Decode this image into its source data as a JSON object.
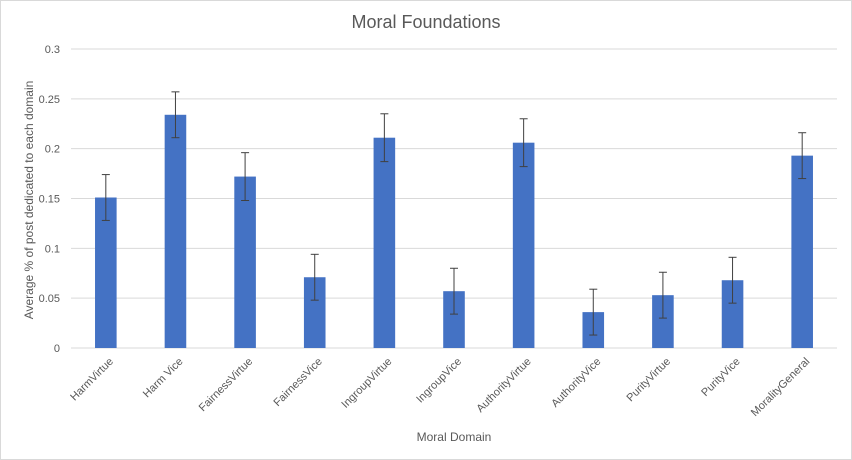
{
  "chart_data": {
    "type": "bar",
    "title": "Moral Foundations",
    "xlabel": "Moral Domain",
    "ylabel": "Average % of post dedicated to each domain",
    "categories": [
      "HarmVirtue",
      "Harm Vice",
      "FairnessVirtue",
      "FairnessVice",
      "IngroupVirtue",
      "IngroupVice",
      "AuthorityVirtue",
      "AuthorityVice",
      "PurityVirtue",
      "PurityVice",
      "MoralityGeneral"
    ],
    "values": [
      0.151,
      0.234,
      0.172,
      0.071,
      0.211,
      0.057,
      0.206,
      0.036,
      0.053,
      0.068,
      0.193
    ],
    "errors": [
      0.023,
      0.023,
      0.024,
      0.023,
      0.024,
      0.023,
      0.024,
      0.023,
      0.023,
      0.023,
      0.023
    ],
    "ylim": [
      0,
      0.3
    ],
    "yticks": [
      "0",
      "0.05",
      "0.1",
      "0.15",
      "0.2",
      "0.25",
      "0.3"
    ],
    "grid": true,
    "legend": "none",
    "bar_color": "#4472c4",
    "error_color": "#404040",
    "grid_color": "#d9d9d9"
  }
}
